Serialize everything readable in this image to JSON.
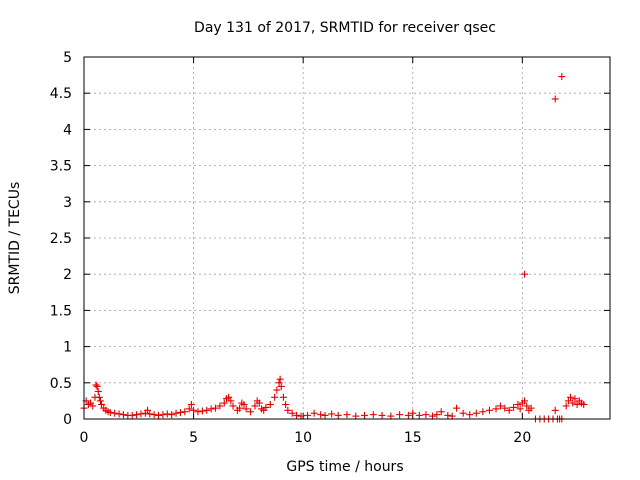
{
  "chart_data": {
    "type": "scatter",
    "title": "Day 131 of 2017, SRMTID for receiver qsec",
    "xlabel": "GPS time / hours",
    "ylabel": "SRMTID / TECUs",
    "xlim": [
      0,
      24
    ],
    "ylim": [
      0,
      5
    ],
    "xticks": [
      0,
      5,
      10,
      15,
      20
    ],
    "yticks": [
      0,
      0.5,
      1,
      1.5,
      2,
      2.5,
      3,
      3.5,
      4,
      4.5,
      5
    ],
    "xtick_labels": [
      "0",
      "5",
      "10",
      "15",
      "20"
    ],
    "ytick_labels": [
      "0",
      "0.5",
      "1",
      "1.5",
      "2",
      "2.5",
      "3",
      "3.5",
      "4",
      "4.5",
      "5"
    ],
    "grid": true,
    "marker": "+",
    "color": "#e00000",
    "series": [
      {
        "x": [
          0.0,
          0.1,
          0.2,
          0.3,
          0.4,
          0.5,
          0.55,
          0.6,
          0.65,
          0.7,
          0.75,
          0.8,
          0.9,
          1.0,
          1.1,
          1.2,
          1.4,
          1.6,
          1.8,
          2.0,
          2.2,
          2.4,
          2.6,
          2.8,
          2.9,
          3.0,
          3.2,
          3.4,
          3.6,
          3.8,
          4.0,
          4.2,
          4.4,
          4.6,
          4.8,
          4.9,
          5.0,
          5.2,
          5.4,
          5.6,
          5.8,
          6.0,
          6.2,
          6.4,
          6.5,
          6.6,
          6.7,
          6.8,
          7.0,
          7.1,
          7.2,
          7.3,
          7.4,
          7.6,
          7.8,
          7.9,
          8.0,
          8.1,
          8.2,
          8.3,
          8.5,
          8.7,
          8.8,
          8.9,
          8.95,
          9.0,
          9.1,
          9.2,
          9.3,
          9.5,
          9.7,
          9.9,
          10.2,
          10.5,
          10.8,
          11.0,
          11.3,
          11.6,
          12.0,
          12.4,
          12.8,
          13.2,
          13.6,
          14.0,
          14.4,
          14.8,
          15.0,
          15.3,
          15.6,
          15.9,
          16.1,
          16.3,
          16.6,
          16.8,
          17.0,
          17.3,
          17.6,
          17.9,
          18.2,
          18.5,
          18.8,
          19.0,
          19.2,
          19.4,
          19.6,
          19.8,
          19.9,
          20.0,
          20.1,
          20.2,
          20.3,
          20.4,
          20.6,
          20.8,
          21.0,
          21.2,
          21.4,
          21.5,
          21.6,
          21.7,
          21.8,
          22.0,
          22.1,
          22.2,
          22.3,
          22.4,
          22.5,
          22.6,
          22.7,
          22.8,
          20.1,
          21.5,
          21.8
        ],
        "y": [
          0.15,
          0.25,
          0.2,
          0.22,
          0.18,
          0.3,
          0.47,
          0.45,
          0.38,
          0.3,
          0.25,
          0.2,
          0.15,
          0.12,
          0.1,
          0.09,
          0.08,
          0.07,
          0.06,
          0.05,
          0.05,
          0.06,
          0.07,
          0.08,
          0.12,
          0.07,
          0.06,
          0.05,
          0.06,
          0.07,
          0.06,
          0.08,
          0.09,
          0.1,
          0.14,
          0.2,
          0.12,
          0.1,
          0.11,
          0.12,
          0.14,
          0.15,
          0.18,
          0.22,
          0.28,
          0.3,
          0.25,
          0.18,
          0.12,
          0.15,
          0.22,
          0.2,
          0.14,
          0.1,
          0.18,
          0.25,
          0.22,
          0.14,
          0.12,
          0.16,
          0.2,
          0.3,
          0.4,
          0.5,
          0.55,
          0.45,
          0.3,
          0.2,
          0.12,
          0.08,
          0.05,
          0.04,
          0.05,
          0.08,
          0.06,
          0.05,
          0.07,
          0.05,
          0.06,
          0.04,
          0.05,
          0.06,
          0.05,
          0.04,
          0.06,
          0.05,
          0.08,
          0.05,
          0.06,
          0.04,
          0.06,
          0.1,
          0.05,
          0.04,
          0.15,
          0.08,
          0.06,
          0.08,
          0.1,
          0.12,
          0.14,
          0.18,
          0.15,
          0.12,
          0.16,
          0.2,
          0.14,
          0.22,
          0.25,
          0.18,
          0.12,
          0.15,
          0.0,
          0.0,
          0.0,
          0.0,
          0.0,
          0.12,
          0.0,
          0.0,
          0.0,
          0.18,
          0.25,
          0.3,
          0.22,
          0.28,
          0.2,
          0.25,
          0.22,
          0.2,
          2.0,
          4.42,
          4.73
        ]
      }
    ]
  }
}
